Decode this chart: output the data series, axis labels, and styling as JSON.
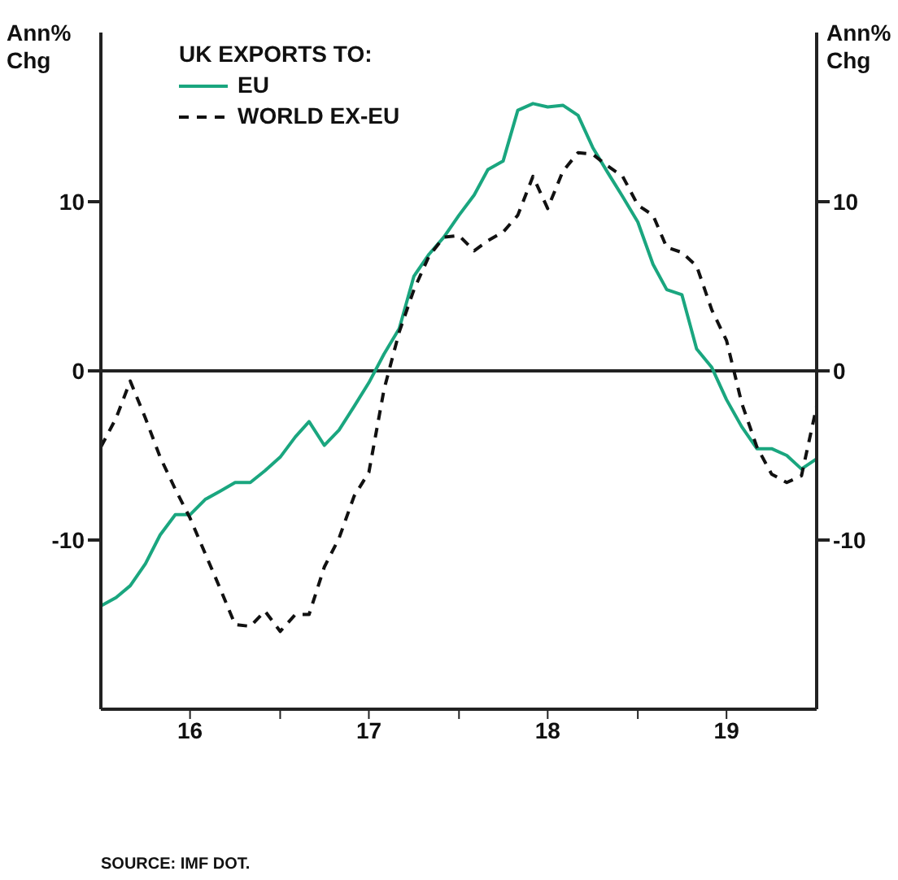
{
  "chart_data": {
    "type": "line",
    "ylabel": "Ann% Chg",
    "y2label": "Ann% Chg",
    "legend_title": "UK EXPORTS TO:",
    "annotations": [
      "SOURCE: IMF DOT."
    ],
    "x": [
      "2016-01",
      "2016-02",
      "2016-03",
      "2016-04",
      "2016-05",
      "2016-06",
      "2016-07",
      "2016-08",
      "2016-09",
      "2016-10",
      "2016-11",
      "2016-12",
      "2017-01",
      "2017-02",
      "2017-03",
      "2017-04",
      "2017-05",
      "2017-06",
      "2017-07",
      "2017-08",
      "2017-09",
      "2017-10",
      "2017-11",
      "2017-12",
      "2018-01",
      "2018-02",
      "2018-03",
      "2018-04",
      "2018-05",
      "2018-06",
      "2018-07",
      "2018-08",
      "2018-09",
      "2018-10",
      "2018-11",
      "2018-12",
      "2019-01",
      "2019-02",
      "2019-03",
      "2019-04",
      "2019-05",
      "2019-06",
      "2019-07",
      "2019-08",
      "2019-09",
      "2019-10",
      "2019-11",
      "2019-12",
      "2020-01"
    ],
    "series": [
      {
        "name": "EU",
        "color": "#1aa67f",
        "line_style": "solid",
        "values": [
          -13.9,
          -13.4,
          -12.7,
          -11.4,
          -9.7,
          -8.5,
          -8.5,
          -7.6,
          -7.1,
          -6.6,
          -6.6,
          -5.9,
          -5.1,
          -3.9,
          -3.0,
          -4.4,
          -3.5,
          -2.1,
          -0.7,
          1.0,
          2.5,
          5.6,
          6.9,
          7.9,
          9.2,
          10.4,
          11.9,
          12.4,
          15.4,
          15.8,
          15.6,
          15.7,
          15.1,
          13.2,
          11.7,
          10.3,
          8.8,
          6.3,
          4.8,
          4.5,
          1.3,
          0.2,
          -1.7,
          -3.3,
          -4.6,
          -4.6,
          -5.0,
          -5.8,
          -5.2
        ]
      },
      {
        "name": "WORLD EX-EU",
        "color": "#111111",
        "line_style": "dashed",
        "values": [
          -4.5,
          -2.8,
          -0.6,
          -2.8,
          -5.1,
          -7.0,
          -8.7,
          -10.8,
          -12.9,
          -15.0,
          -15.1,
          -14.2,
          -15.4,
          -14.4,
          -14.4,
          -11.6,
          -9.9,
          -7.4,
          -6.0,
          -1.1,
          2.3,
          4.8,
          6.8,
          7.9,
          8.0,
          7.1,
          7.7,
          8.2,
          9.2,
          11.5,
          9.6,
          11.8,
          12.9,
          12.8,
          12.1,
          11.5,
          9.8,
          9.2,
          7.3,
          7.0,
          6.2,
          3.6,
          1.8,
          -1.9,
          -4.5,
          -6.1,
          -6.6,
          -6.2,
          -2.1
        ]
      }
    ],
    "xlim": [
      "2016-01",
      "2020-01"
    ],
    "xticks": [
      {
        "value": "2016-07",
        "label": "16"
      },
      {
        "value": "2017-01",
        "label": null
      },
      {
        "value": "2017-07",
        "label": "17"
      },
      {
        "value": "2018-01",
        "label": null
      },
      {
        "value": "2018-07",
        "label": "18"
      },
      {
        "value": "2019-01",
        "label": null
      },
      {
        "value": "2019-07",
        "label": "19"
      }
    ],
    "ylim": [
      -20,
      20
    ],
    "yticks": [
      -10,
      0,
      10
    ],
    "y2lim": [
      -20,
      20
    ],
    "y2ticks": [
      -10,
      0,
      10
    ],
    "ref_lines": [
      {
        "axis": "y",
        "value": 0,
        "color": "#222222",
        "line_style": "solid"
      }
    ],
    "grid": false,
    "legend": "top left",
    "marker": "none"
  }
}
